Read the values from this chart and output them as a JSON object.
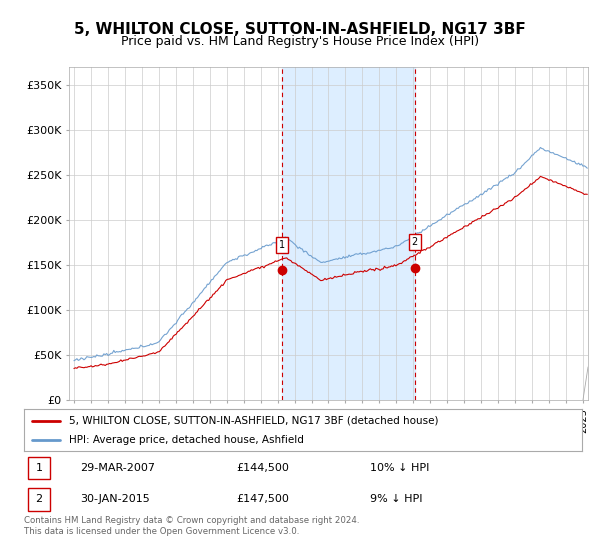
{
  "title": "5, WHILTON CLOSE, SUTTON-IN-ASHFIELD, NG17 3BF",
  "subtitle": "Price paid vs. HM Land Registry's House Price Index (HPI)",
  "title_fontsize": 11,
  "subtitle_fontsize": 9,
  "ylabel_ticks": [
    "£0",
    "£50K",
    "£100K",
    "£150K",
    "£200K",
    "£250K",
    "£300K",
    "£350K"
  ],
  "ytick_values": [
    0,
    50000,
    100000,
    150000,
    200000,
    250000,
    300000,
    350000
  ],
  "ylim": [
    0,
    370000
  ],
  "xlim_start": 1994.7,
  "xlim_end": 2025.3,
  "legend_line1": "5, WHILTON CLOSE, SUTTON-IN-ASHFIELD, NG17 3BF (detached house)",
  "legend_line2": "HPI: Average price, detached house, Ashfield",
  "sale1_date": "29-MAR-2007",
  "sale1_price": "£144,500",
  "sale1_info": "10% ↓ HPI",
  "sale2_date": "30-JAN-2015",
  "sale2_price": "£147,500",
  "sale2_info": "9% ↓ HPI",
  "footer": "Contains HM Land Registry data © Crown copyright and database right 2024.\nThis data is licensed under the Open Government Licence v3.0.",
  "sale1_x": 2007.24,
  "sale1_y": 144500,
  "sale2_x": 2015.08,
  "sale2_y": 147500,
  "hpi_color": "#6699cc",
  "price_color": "#cc0000",
  "shade_color": "#ddeeff",
  "background_color": "#ffffff",
  "grid_color": "#cccccc"
}
